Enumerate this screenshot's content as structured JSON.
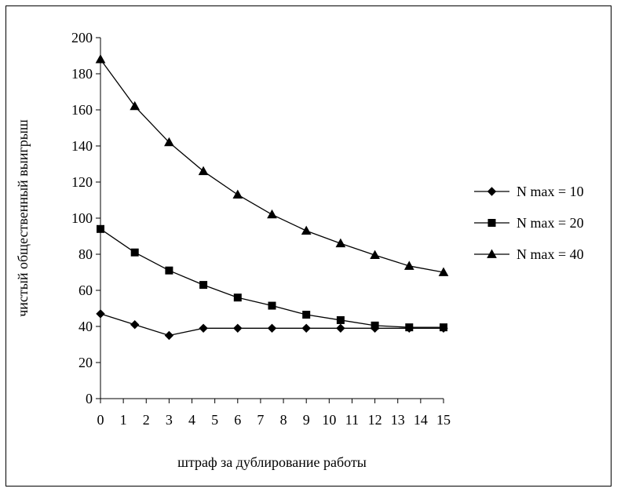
{
  "chart_data": {
    "type": "line",
    "title": "",
    "xlabel": "штраф за дублирование работы",
    "ylabel": "чистый общественный выигрыш",
    "x": [
      0,
      1.5,
      3,
      4.5,
      6,
      7.5,
      9,
      10.5,
      12,
      13.5,
      15
    ],
    "x_tick_labels": [
      "0",
      "1",
      "2",
      "3",
      "4",
      "5",
      "6",
      "7",
      "8",
      "9",
      "10",
      "11",
      "12",
      "13",
      "14",
      "15"
    ],
    "xlim": [
      0,
      15
    ],
    "ylim": [
      0,
      200
    ],
    "y_ticks": [
      0,
      20,
      40,
      60,
      80,
      100,
      120,
      140,
      160,
      180,
      200
    ],
    "grid": false,
    "legend_position": "right",
    "series": [
      {
        "name": "N max = 10",
        "marker": "diamond",
        "values": [
          47,
          41,
          35,
          39,
          39,
          39,
          39,
          39,
          39,
          39,
          39
        ]
      },
      {
        "name": "N max = 20",
        "marker": "square",
        "values": [
          94,
          81,
          71,
          63,
          56,
          51.5,
          46.5,
          43.5,
          40.5,
          39.5,
          39.5
        ]
      },
      {
        "name": "N max = 40",
        "marker": "triangle",
        "values": [
          188,
          162,
          142,
          126,
          113,
          102,
          93,
          86,
          79.5,
          73.5,
          70
        ]
      }
    ],
    "colors": {
      "line": "#000000",
      "marker": "#000000",
      "axis": "#000000",
      "frame": "#000000"
    }
  }
}
